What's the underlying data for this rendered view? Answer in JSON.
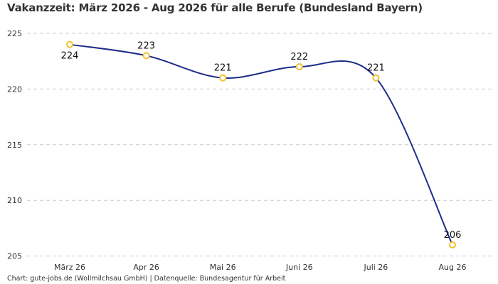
{
  "chart_data": {
    "type": "line",
    "title": "Vakanzzeit: März 2026 - Aug 2026 für alle Berufe (Bundesland Bayern)",
    "source": "Chart: gute-jobs.de (Wollmilchsau GmbH) | Datenquelle: Bundesagentur für Arbeit",
    "categories": [
      "März 26",
      "Apr 26",
      "Mai 26",
      "Juni 26",
      "Juli 26",
      "Aug 26"
    ],
    "series": [
      {
        "values": [
          224,
          223,
          221,
          222,
          221,
          206
        ]
      }
    ],
    "data_labels": [
      "224",
      "223",
      "221",
      "222",
      "221",
      "206"
    ],
    "label_position": [
      "below",
      "above",
      "above",
      "above",
      "above",
      "above"
    ],
    "y_ticks": [
      205,
      210,
      215,
      220,
      225
    ],
    "ylim": [
      204.5,
      226
    ],
    "grid": true,
    "colors": {
      "line": "#1f2d8a",
      "marker": "#f2c12e",
      "grid": "#cccccc"
    }
  }
}
